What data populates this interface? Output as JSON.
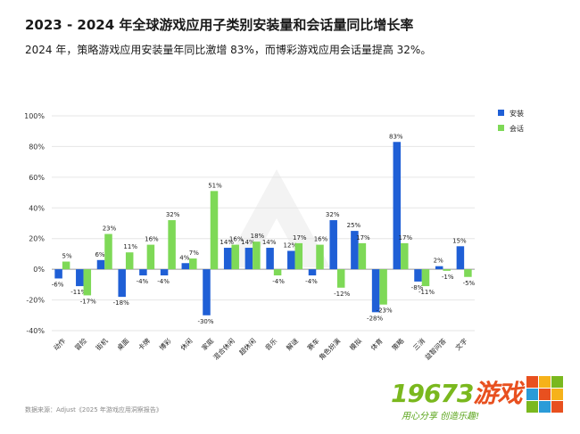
{
  "header": {
    "title": "2023 - 2024 年全球游戏应用子类别安装量和会话量同比增长率",
    "subtitle": "2024 年，策略游戏应用安装量年同比激增 83%，而博彩游戏应用会话量提高 32%。"
  },
  "footer": {
    "source": "数据来源：Adjust《2025 年游戏应用洞察报告》"
  },
  "logo": {
    "digits": "19673",
    "cn": "游戏",
    "tagline": "用心分享 创造乐趣!"
  },
  "chart_data": {
    "type": "bar",
    "categories": [
      "动作",
      "冒险",
      "街机",
      "桌面",
      "卡牌",
      "博彩",
      "休闲",
      "家庭",
      "混合休闲",
      "超休闲",
      "音乐",
      "解谜",
      "赛车",
      "角色扮演",
      "模拟",
      "体育",
      "策略",
      "三消",
      "益智问答",
      "文字"
    ],
    "series": [
      {
        "name": "安装",
        "color": "#1f5fd6",
        "values": [
          -6,
          -11,
          6,
          -18,
          -4,
          -4,
          4,
          -30,
          14,
          14,
          14,
          12,
          -4,
          32,
          25,
          -28,
          83,
          -8,
          2,
          15
        ]
      },
      {
        "name": "会话",
        "color": "#7ed957",
        "values": [
          5,
          -17,
          23,
          11,
          16,
          32,
          7,
          51,
          16,
          18,
          -4,
          17,
          16,
          -12,
          17,
          -23,
          17,
          -11,
          -1,
          -5
        ]
      }
    ],
    "ylim": [
      -40,
      100
    ],
    "yticks": [
      -40,
      -20,
      0,
      20,
      40,
      60,
      80,
      100
    ],
    "ytick_labels": [
      "-40%",
      "-20%",
      "0%",
      "20%",
      "40%",
      "60%",
      "80%",
      "100%"
    ],
    "value_suffix": "%",
    "grid": true,
    "legend": "top-right"
  }
}
